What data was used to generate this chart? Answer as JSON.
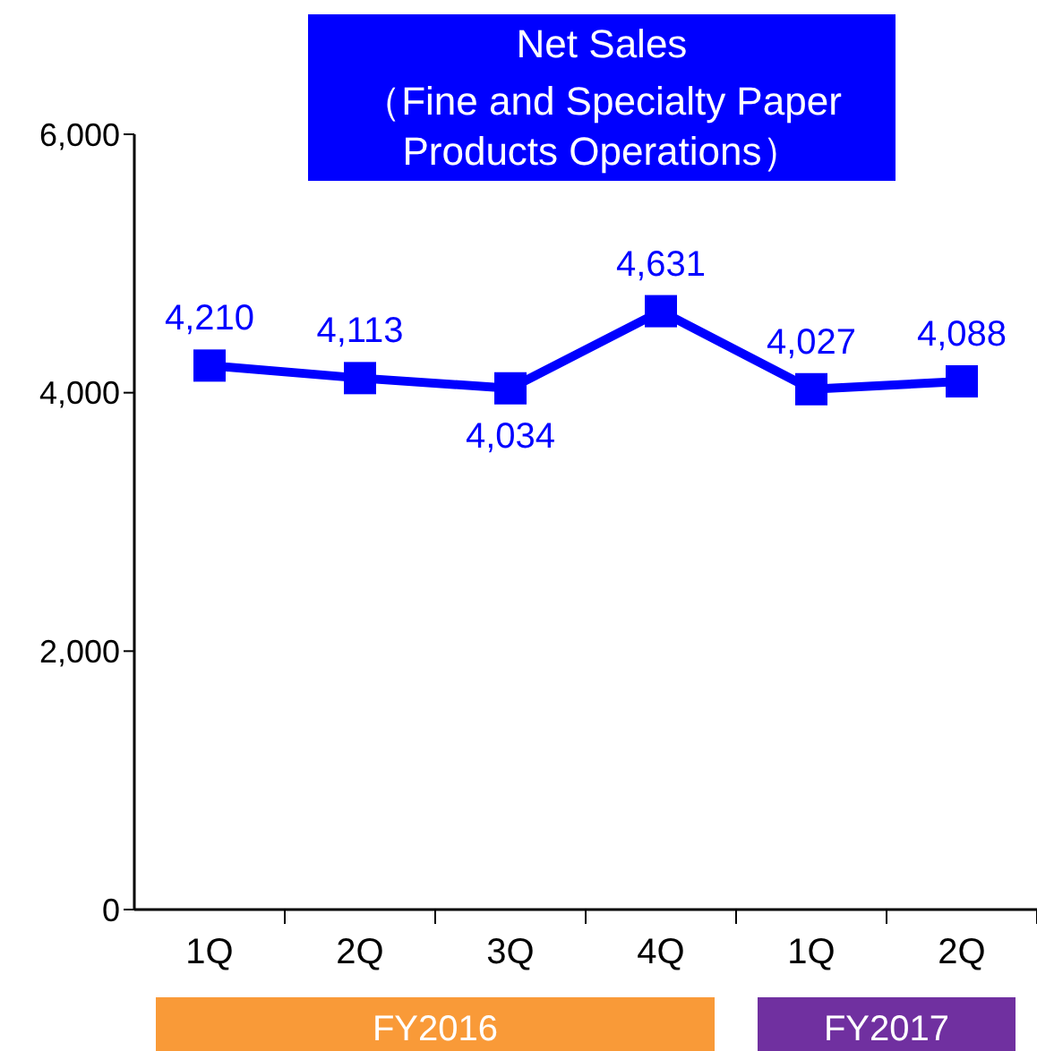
{
  "chart_data": {
    "type": "line",
    "title": "Net Sales",
    "subtitle": "（Fine and Specialty Paper Products Operations）",
    "categories": [
      "1Q",
      "2Q",
      "3Q",
      "4Q",
      "1Q",
      "2Q"
    ],
    "series": [
      {
        "color": "#0000ff",
        "values": [
          4210,
          4113,
          4034,
          4631,
          4027,
          4088
        ],
        "value_labels": [
          "4,210",
          "4,113",
          "4,034",
          "4,631",
          "4,027",
          "4,088"
        ]
      }
    ],
    "ylim": [
      0,
      6000
    ],
    "yticks": [
      {
        "value": 0,
        "label": "0"
      },
      {
        "value": 2000,
        "label": "2,000"
      },
      {
        "value": 4000,
        "label": "4,000"
      },
      {
        "value": 6000,
        "label": "6,000"
      }
    ],
    "grid": false,
    "marker": "square",
    "line_style": "solid",
    "annotations": [
      "FY2016",
      "FY2017"
    ]
  }
}
